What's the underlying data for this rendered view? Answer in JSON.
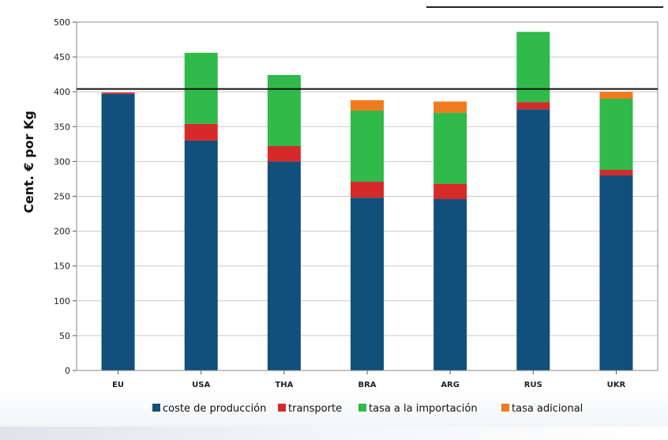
{
  "chart_data": {
    "type": "bar",
    "stacked": true,
    "categories": [
      "EU",
      "USA",
      "THA",
      "BRA",
      "ARG",
      "RUS",
      "UKR"
    ],
    "series": [
      {
        "name": "coste de producción",
        "color": "#10507a",
        "values": [
          397,
          330,
          300,
          248,
          246,
          375,
          280
        ]
      },
      {
        "name": "transporte",
        "color": "#d62a2a",
        "values": [
          2,
          24,
          22,
          23,
          22,
          10,
          8
        ]
      },
      {
        "name": "tasa a la importación",
        "color": "#2fba4a",
        "values": [
          0,
          102,
          102,
          102,
          102,
          101,
          102
        ]
      },
      {
        "name": "tasa adicional",
        "color": "#f07a1e",
        "values": [
          0,
          0,
          0,
          15,
          16,
          0,
          10
        ]
      }
    ],
    "ylabel": "Cent. € por Kg",
    "xlabel": "",
    "title": "",
    "ylim": [
      0,
      500
    ],
    "yticks": [
      0,
      50,
      100,
      150,
      200,
      250,
      300,
      350,
      400,
      450,
      500
    ],
    "reference_line": 404,
    "grid": true,
    "legend_position": "bottom"
  }
}
